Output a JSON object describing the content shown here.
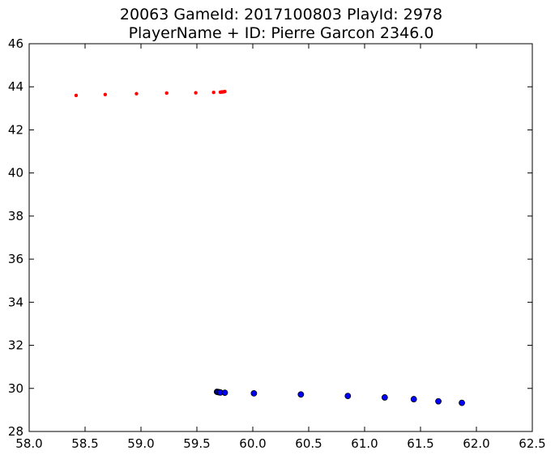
{
  "chart_data": {
    "type": "scatter",
    "title_line1": "20063 GameId: 2017100803 PlayId: 2978",
    "title_line2": "PlayerName + ID: Pierre Garcon 2346.0",
    "xlabel": "",
    "ylabel": "",
    "xlim": [
      58.0,
      62.5
    ],
    "ylim": [
      28,
      46
    ],
    "x_ticks": [
      58.0,
      58.5,
      59.0,
      59.5,
      60.0,
      60.5,
      61.0,
      61.5,
      62.0,
      62.5
    ],
    "x_tick_labels": [
      "58.0",
      "58.5",
      "59.0",
      "59.5",
      "60.0",
      "60.5",
      "61.0",
      "61.5",
      "62.0",
      "62.5"
    ],
    "y_ticks": [
      28,
      30,
      32,
      34,
      36,
      38,
      40,
      42,
      44,
      46
    ],
    "y_tick_labels": [
      "28",
      "30",
      "32",
      "34",
      "36",
      "38",
      "40",
      "42",
      "44",
      "46"
    ],
    "grid": false,
    "series": [
      {
        "color": "#ff0000",
        "marker": "small-dot",
        "points": [
          [
            58.42,
            43.6
          ],
          [
            58.68,
            43.64
          ],
          [
            58.96,
            43.68
          ],
          [
            59.23,
            43.71
          ],
          [
            59.49,
            43.72
          ],
          [
            59.65,
            43.74
          ],
          [
            59.71,
            43.75
          ],
          [
            59.72,
            43.76
          ],
          [
            59.73,
            43.76
          ],
          [
            59.74,
            43.77
          ],
          [
            59.75,
            43.78
          ]
        ]
      },
      {
        "color": "#0000ff",
        "marker": "circle",
        "points": [
          [
            59.68,
            29.84
          ],
          [
            59.69,
            29.83
          ],
          [
            59.7,
            29.82
          ],
          [
            59.71,
            29.81
          ],
          [
            59.75,
            29.8
          ],
          [
            60.01,
            29.77
          ],
          [
            60.43,
            29.72
          ],
          [
            60.85,
            29.65
          ],
          [
            61.18,
            29.58
          ],
          [
            61.44,
            29.5
          ],
          [
            61.66,
            29.4
          ],
          [
            61.87,
            29.33
          ]
        ]
      }
    ]
  }
}
